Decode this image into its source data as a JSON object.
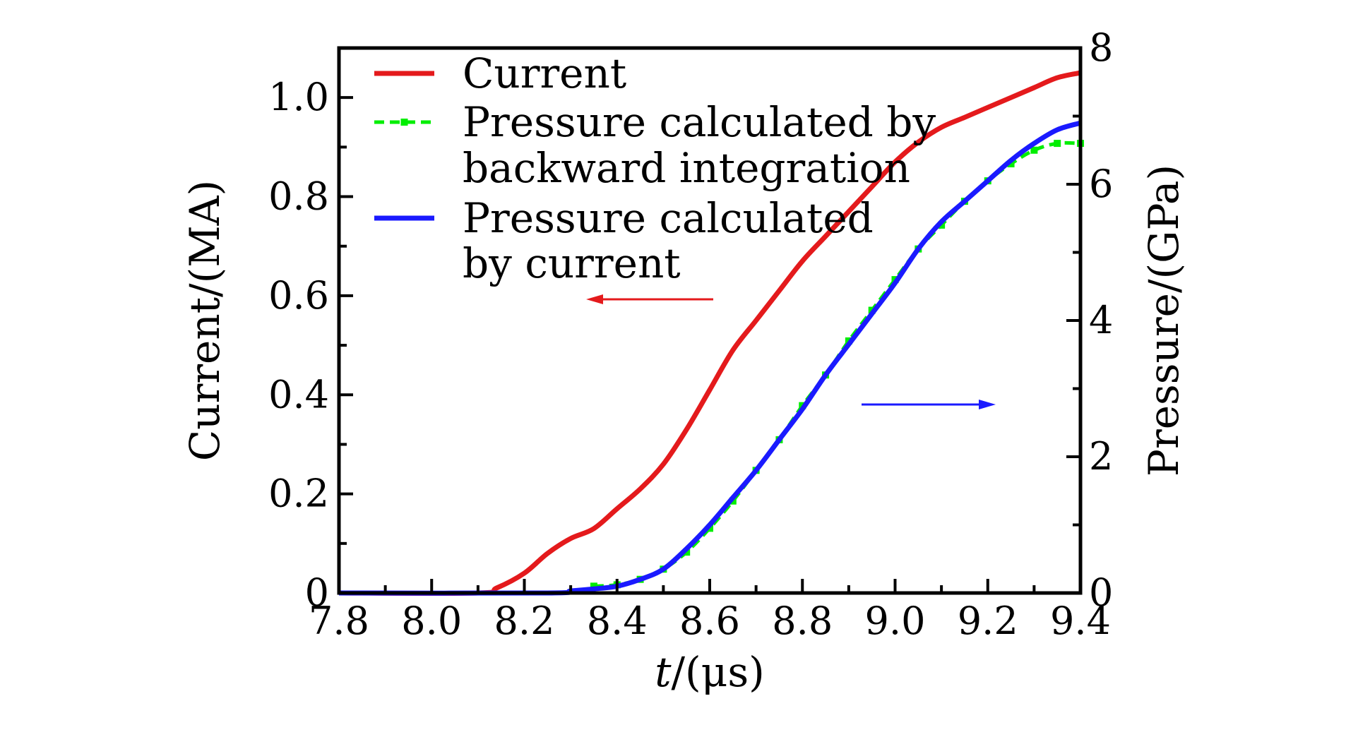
{
  "chart_data": {
    "type": "line",
    "xlabel": {
      "italic": "t",
      "rest": "/(μs)"
    },
    "ylabel_left": "Current/(MA)",
    "ylabel_right": "Pressure/(GPa)",
    "xlim": [
      7.8,
      9.4
    ],
    "ylim_left": [
      0,
      1.1
    ],
    "ylim_right": [
      0,
      8
    ],
    "xticks": [
      "7.8",
      "8.0",
      "8.2",
      "8.4",
      "8.6",
      "8.8",
      "9.0",
      "9.2",
      "9.4"
    ],
    "yticks_left": [
      "0",
      "0.2",
      "0.4",
      "0.6",
      "0.8",
      "1.0"
    ],
    "yticks_right": [
      "0",
      "2",
      "4",
      "6",
      "8"
    ],
    "legend_position": "top-left",
    "series": [
      {
        "name": "Current",
        "axis": "left",
        "color": "#e41a1c",
        "style": "solid",
        "x": [
          7.8,
          8.1,
          8.14,
          8.2,
          8.25,
          8.3,
          8.35,
          8.4,
          8.45,
          8.5,
          8.55,
          8.6,
          8.65,
          8.7,
          8.75,
          8.8,
          8.85,
          8.9,
          8.95,
          9.0,
          9.05,
          9.1,
          9.15,
          9.2,
          9.25,
          9.3,
          9.35,
          9.4
        ],
        "values": [
          0,
          0,
          0.01,
          0.04,
          0.08,
          0.11,
          0.13,
          0.17,
          0.21,
          0.26,
          0.33,
          0.41,
          0.49,
          0.55,
          0.61,
          0.67,
          0.72,
          0.77,
          0.82,
          0.87,
          0.91,
          0.94,
          0.96,
          0.98,
          1.0,
          1.02,
          1.04,
          1.05
        ]
      },
      {
        "name": "Pressure calculated by backward integration",
        "legend_lines": [
          "Pressure calculated by",
          "backward integration"
        ],
        "axis": "right",
        "color": "#00ee00",
        "style": "dash-square",
        "x": [
          8.35,
          8.4,
          8.45,
          8.5,
          8.55,
          8.6,
          8.65,
          8.7,
          8.75,
          8.8,
          8.85,
          8.9,
          8.95,
          9.0,
          9.05,
          9.1,
          9.15,
          9.2,
          9.25,
          9.3,
          9.35,
          9.4
        ],
        "values": [
          0.1,
          0.12,
          0.2,
          0.35,
          0.6,
          0.95,
          1.35,
          1.8,
          2.25,
          2.75,
          3.2,
          3.7,
          4.15,
          4.6,
          5.05,
          5.4,
          5.75,
          6.05,
          6.3,
          6.5,
          6.6,
          6.6
        ]
      },
      {
        "name": "Pressure calculated by current",
        "legend_lines": [
          "Pressure calculated",
          "by current"
        ],
        "axis": "right",
        "color": "#1a1aff",
        "style": "solid",
        "x": [
          7.8,
          8.25,
          8.3,
          8.35,
          8.4,
          8.45,
          8.5,
          8.55,
          8.6,
          8.65,
          8.7,
          8.75,
          8.8,
          8.85,
          8.9,
          8.95,
          9.0,
          9.05,
          9.1,
          9.15,
          9.2,
          9.25,
          9.3,
          9.35,
          9.4
        ],
        "values": [
          0,
          0,
          0.03,
          0.06,
          0.1,
          0.2,
          0.35,
          0.65,
          1.0,
          1.4,
          1.8,
          2.25,
          2.7,
          3.2,
          3.65,
          4.1,
          4.55,
          5.05,
          5.45,
          5.75,
          6.05,
          6.35,
          6.6,
          6.8,
          6.9
        ]
      }
    ],
    "annotations": [
      {
        "name": "left-axis-arrow",
        "color": "#e41a1c",
        "direction": "left"
      },
      {
        "name": "right-axis-arrow",
        "color": "#1a1aff",
        "direction": "right"
      }
    ]
  }
}
